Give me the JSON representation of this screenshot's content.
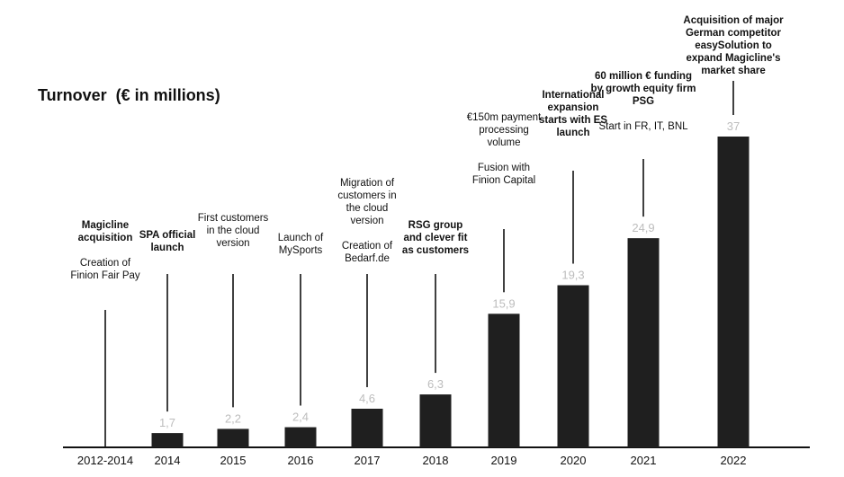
{
  "chart_data": {
    "type": "bar",
    "title": "Turnover  (€ in millions)",
    "categories": [
      "2012-2014",
      "2014",
      "2015",
      "2016",
      "2017",
      "2018",
      "2019",
      "2020",
      "2021",
      "2022"
    ],
    "values": [
      null,
      1.7,
      2.2,
      2.4,
      4.6,
      6.3,
      15.9,
      19.3,
      24.9,
      37
    ],
    "value_labels": [
      "",
      "1,7",
      "2,2",
      "2,4",
      "4,6",
      "6,3",
      "15,9",
      "19,3",
      "24,9",
      "37"
    ],
    "ylim": [
      0,
      37
    ],
    "grid": false,
    "bar_color": "#1f1f1f",
    "value_label_color": "#bdbdbd",
    "annotations": [
      {
        "category": "2012-2014",
        "bold": "Magicline acquisition",
        "text": "Creation of Finion Fair Pay"
      },
      {
        "category": "2014",
        "bold": "SPA official launch",
        "text": ""
      },
      {
        "category": "2015",
        "bold": "",
        "text": "First customers in the cloud version"
      },
      {
        "category": "2016",
        "bold": "",
        "text": "Launch of MySports"
      },
      {
        "category": "2017",
        "bold": "",
        "text": "Migration of customers in the cloud version",
        "text2": "Creation of Bedarf.de"
      },
      {
        "category": "2018",
        "bold": "RSG group and clever fit as customers",
        "text": ""
      },
      {
        "category": "2019",
        "bold": "",
        "text": "€150m payment processing volume",
        "text2": "Fusion with Finion Capital"
      },
      {
        "category": "2020",
        "bold": "International expansion starts  with ES launch",
        "text": ""
      },
      {
        "category": "2021",
        "bold": "60 million € funding by growth equity firm PSG",
        "text": "Start in FR, IT, BNL"
      },
      {
        "category": "2022",
        "bold": "Acquisition of major German competitor easySolution to expand Magicline's market share",
        "text": ""
      }
    ]
  }
}
